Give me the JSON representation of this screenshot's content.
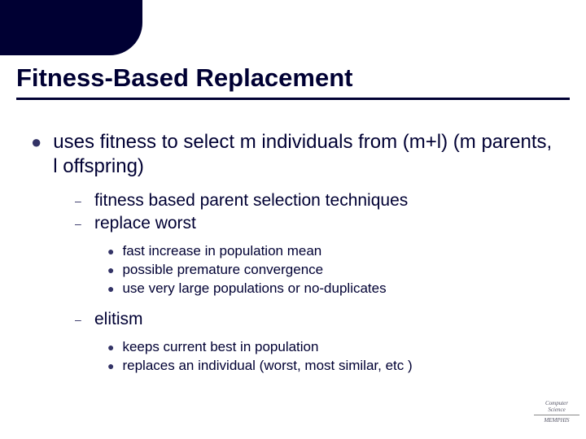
{
  "colors": {
    "background": "#ffffff",
    "accent": "#000033",
    "bullet": "#333366",
    "text": "#000033"
  },
  "title": "Fitness-Based Replacement",
  "main": {
    "text": "uses fitness to select m individuals from (m+l) (m parents, l offspring)"
  },
  "sub": [
    {
      "text": "fitness based parent selection techniques"
    },
    {
      "text": "replace worst"
    }
  ],
  "replace_worst_details": [
    {
      "text": "fast increase in population mean"
    },
    {
      "text": "possible premature convergence"
    },
    {
      "text": "use very large populations or no-duplicates"
    }
  ],
  "elitism": {
    "text": "elitism"
  },
  "elitism_details": [
    {
      "text": "keeps current best in population"
    },
    {
      "text": "replaces an individual (worst, most similar, etc )"
    }
  ],
  "logo": {
    "line1": "Computer",
    "line2": "Science",
    "line3": "MEMPHIS"
  }
}
